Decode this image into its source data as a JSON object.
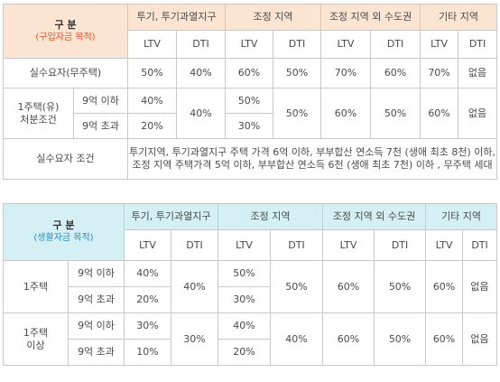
{
  "table1": {
    "corner_title": "구 분",
    "corner_sub": "(구입자금 목적)",
    "groups": [
      "투기, 투기과열지구",
      "조정 지역",
      "조정 지역 외 수도권",
      "기타 지역"
    ],
    "ltv": "LTV",
    "dti": "DTI",
    "row_real": {
      "label": "실수요자(무주택)",
      "values": [
        "50%",
        "40%",
        "60%",
        "50%",
        "70%",
        "60%",
        "70%",
        "없음"
      ]
    },
    "row_one": {
      "label_line1": "1주택(유)",
      "label_line2": "처분조건",
      "sub_a": "9억 이하",
      "sub_b": "9억 초과",
      "g1_ltv_a": "40%",
      "g1_ltv_b": "20%",
      "g1_dti": "40%",
      "g2_ltv_a": "50%",
      "g2_ltv_b": "30%",
      "g2_dti": "50%",
      "g3_ltv": "60%",
      "g3_dti": "50%",
      "g4_ltv": "60%",
      "g4_dti": "없음"
    },
    "condition": {
      "label": "실수요자 조건",
      "line1": "투기지역, 투기과열지구 주택 가격 6억 이하, 부부합산 연소득 7천 (생애 최초 8천) 이하,",
      "line2": "조정 지역 주택가격 5억 이하, 부부합산 연소득 6천 (생애 최초 7천) 이하 , 무주택 세대"
    }
  },
  "table2": {
    "corner_title": "구 분",
    "corner_sub": "(생활자금 목적)",
    "groups": [
      "투기, 투기과열지구",
      "조정 지역",
      "조정 지역 외 수도권",
      "기타 지역"
    ],
    "ltv": "LTV",
    "dti": "DTI",
    "row_one": {
      "label": "1주택",
      "sub_a": "9억 이하",
      "sub_b": "9억 초과",
      "g1_ltv_a": "40%",
      "g1_ltv_b": "20%",
      "g1_dti": "40%",
      "g2_ltv_a": "50%",
      "g2_ltv_b": "30%",
      "g2_dti": "50%",
      "g3_ltv": "60%",
      "g3_dti": "50%",
      "g4_ltv": "60%",
      "g4_dti": "없음"
    },
    "row_multi": {
      "label_line1": "1주택",
      "label_line2": "이상",
      "sub_a": "9억 이하",
      "sub_b": "9억 초과",
      "g1_ltv_a": "30%",
      "g1_ltv_b": "10%",
      "g1_dti": "30%",
      "g2_ltv_a": "40%",
      "g2_ltv_b": "20%",
      "g2_dti": "40%",
      "g3_ltv": "60%",
      "g3_dti": "50%",
      "g4_ltv": "60%",
      "g4_dti": "없음"
    }
  },
  "colors": {
    "header_orange_bg": "#fce4d2",
    "header_blue_bg": "#d4f0f4",
    "accent_orange": "#e7522b",
    "accent_blue": "#2a8dc6",
    "border": "#c9c9c9"
  }
}
